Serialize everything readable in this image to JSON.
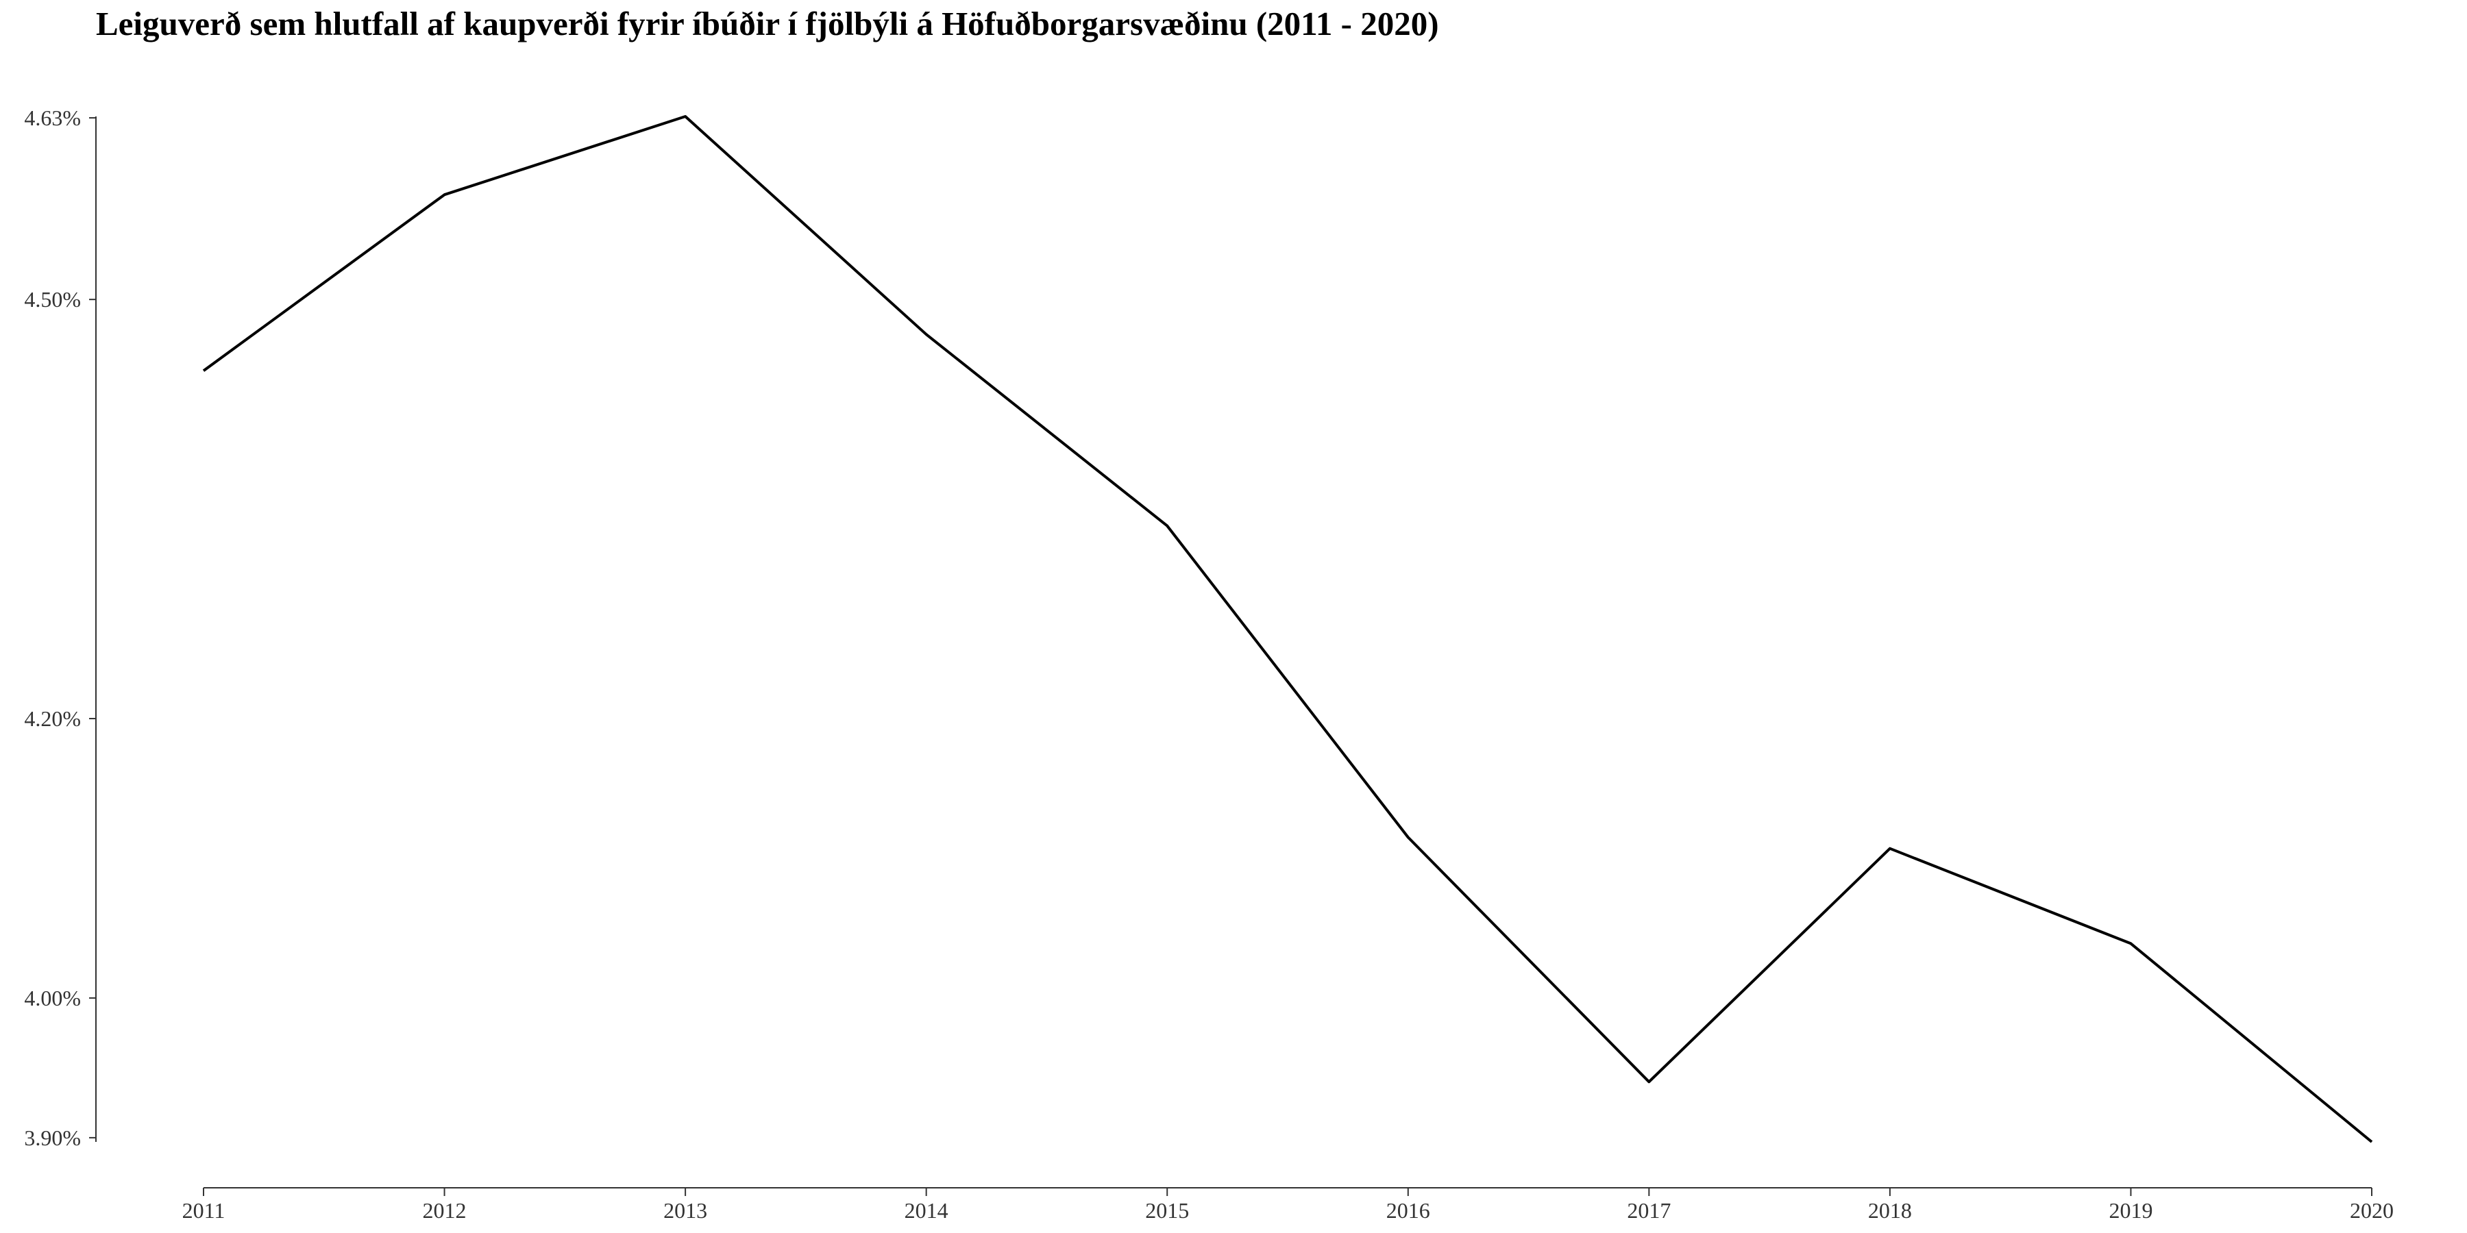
{
  "chart_data": {
    "type": "line",
    "title": "Leiguverð sem hlutfall af kaupverði fyrir íbúðir í fjölbýli á Höfuðborgarsvæðinu (2011 - 2020)",
    "xlabel": "",
    "ylabel": "",
    "x": [
      "2011",
      "2012",
      "2013",
      "2014",
      "2015",
      "2016",
      "2017",
      "2018",
      "2019",
      "2020"
    ],
    "series": [
      {
        "values": [
          4.449,
          4.575,
          4.631,
          4.475,
          4.338,
          4.115,
          3.94,
          4.107,
          4.039,
          3.897
        ]
      }
    ],
    "ylim": [
      3.897,
      4.631
    ],
    "yticks": [
      3.9,
      4.0,
      4.2,
      4.5,
      4.63
    ],
    "ytick_labels": [
      "3.90%",
      "4.00%",
      "4.20%",
      "4.50%",
      "4.63%"
    ],
    "grid": false,
    "legend": "none",
    "line_color": "#000000",
    "axis_color": "#333333"
  }
}
